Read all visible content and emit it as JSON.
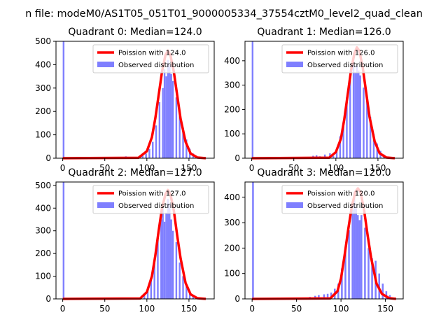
{
  "figure": {
    "suptitle": "n file: modeM0/AS1T05_051T01_9000005334_37554cztM0_level2_quad_clean",
    "colors": {
      "hist": "#7f7fff",
      "fit": "#ff0000",
      "axes": "#000000"
    }
  },
  "chart_data": [
    {
      "type": "bar",
      "title": "Quadrant 0: Median=124.0",
      "xlim": [
        -8,
        180
      ],
      "ylim": [
        0,
        500
      ],
      "xticks": [
        0,
        50,
        100,
        150
      ],
      "yticks": [
        0,
        100,
        200,
        300,
        400,
        500
      ],
      "legend_position": "top-right",
      "legend": [
        "Poission with 124.0",
        "Observed distribution"
      ],
      "fit_mean": 124.0,
      "hist_bins": [
        {
          "x": 0,
          "y": 500
        },
        {
          "x": 72,
          "y": 5
        },
        {
          "x": 74,
          "y": 8
        },
        {
          "x": 82,
          "y": 3
        },
        {
          "x": 90,
          "y": 8
        },
        {
          "x": 94,
          "y": 12
        },
        {
          "x": 98,
          "y": 20
        },
        {
          "x": 102,
          "y": 40
        },
        {
          "x": 106,
          "y": 70
        },
        {
          "x": 110,
          "y": 140
        },
        {
          "x": 114,
          "y": 240
        },
        {
          "x": 118,
          "y": 300
        },
        {
          "x": 120,
          "y": 380
        },
        {
          "x": 122,
          "y": 350
        },
        {
          "x": 124,
          "y": 420
        },
        {
          "x": 126,
          "y": 400
        },
        {
          "x": 128,
          "y": 360
        },
        {
          "x": 130,
          "y": 330
        },
        {
          "x": 134,
          "y": 260
        },
        {
          "x": 138,
          "y": 180
        },
        {
          "x": 142,
          "y": 130
        },
        {
          "x": 146,
          "y": 80
        },
        {
          "x": 150,
          "y": 40
        },
        {
          "x": 154,
          "y": 20
        },
        {
          "x": 158,
          "y": 10
        },
        {
          "x": 162,
          "y": 4
        }
      ],
      "fit_curve": [
        {
          "x": 0,
          "y": 0
        },
        {
          "x": 90,
          "y": 2
        },
        {
          "x": 100,
          "y": 30
        },
        {
          "x": 106,
          "y": 90
        },
        {
          "x": 110,
          "y": 170
        },
        {
          "x": 114,
          "y": 270
        },
        {
          "x": 118,
          "y": 370
        },
        {
          "x": 122,
          "y": 440
        },
        {
          "x": 125,
          "y": 460
        },
        {
          "x": 128,
          "y": 440
        },
        {
          "x": 132,
          "y": 370
        },
        {
          "x": 136,
          "y": 270
        },
        {
          "x": 140,
          "y": 170
        },
        {
          "x": 146,
          "y": 70
        },
        {
          "x": 152,
          "y": 20
        },
        {
          "x": 160,
          "y": 3
        },
        {
          "x": 170,
          "y": 0
        }
      ]
    },
    {
      "type": "bar",
      "title": "Quadrant 1: Median=126.0",
      "xlim": [
        -8,
        180
      ],
      "ylim": [
        0,
        480
      ],
      "xticks": [
        0,
        50,
        100,
        150
      ],
      "yticks": [
        0,
        100,
        200,
        300,
        400
      ],
      "legend_position": "top-right",
      "legend": [
        "Poission with 126.0",
        "Observed distribution"
      ],
      "fit_mean": 126.0,
      "hist_bins": [
        {
          "x": 0,
          "y": 480
        },
        {
          "x": 72,
          "y": 10
        },
        {
          "x": 76,
          "y": 12
        },
        {
          "x": 80,
          "y": 8
        },
        {
          "x": 86,
          "y": 15
        },
        {
          "x": 92,
          "y": 20
        },
        {
          "x": 96,
          "y": 10
        },
        {
          "x": 100,
          "y": 30
        },
        {
          "x": 104,
          "y": 90
        },
        {
          "x": 108,
          "y": 150
        },
        {
          "x": 112,
          "y": 250
        },
        {
          "x": 116,
          "y": 350
        },
        {
          "x": 120,
          "y": 400
        },
        {
          "x": 122,
          "y": 350
        },
        {
          "x": 124,
          "y": 380
        },
        {
          "x": 126,
          "y": 360
        },
        {
          "x": 128,
          "y": 340
        },
        {
          "x": 132,
          "y": 290
        },
        {
          "x": 136,
          "y": 240
        },
        {
          "x": 140,
          "y": 170
        },
        {
          "x": 144,
          "y": 100
        },
        {
          "x": 148,
          "y": 60
        },
        {
          "x": 152,
          "y": 30
        },
        {
          "x": 156,
          "y": 15
        },
        {
          "x": 160,
          "y": 5
        }
      ],
      "fit_curve": [
        {
          "x": 0,
          "y": 0
        },
        {
          "x": 92,
          "y": 2
        },
        {
          "x": 100,
          "y": 25
        },
        {
          "x": 106,
          "y": 80
        },
        {
          "x": 110,
          "y": 160
        },
        {
          "x": 114,
          "y": 260
        },
        {
          "x": 118,
          "y": 360
        },
        {
          "x": 122,
          "y": 430
        },
        {
          "x": 125,
          "y": 455
        },
        {
          "x": 128,
          "y": 440
        },
        {
          "x": 132,
          "y": 370
        },
        {
          "x": 136,
          "y": 270
        },
        {
          "x": 140,
          "y": 170
        },
        {
          "x": 146,
          "y": 70
        },
        {
          "x": 152,
          "y": 20
        },
        {
          "x": 160,
          "y": 3
        },
        {
          "x": 170,
          "y": 0
        }
      ]
    },
    {
      "type": "bar",
      "title": "Quadrant 2: Median=127.0",
      "xlim": [
        -8,
        180
      ],
      "ylim": [
        0,
        515
      ],
      "xticks": [
        0,
        50,
        100,
        150
      ],
      "yticks": [
        0,
        100,
        200,
        300,
        400,
        500
      ],
      "legend_position": "top-right",
      "legend": [
        "Poission with 127.0",
        "Observed distribution"
      ],
      "fit_mean": 127.0,
      "hist_bins": [
        {
          "x": 0,
          "y": 515
        },
        {
          "x": 80,
          "y": 3
        },
        {
          "x": 86,
          "y": 5
        },
        {
          "x": 92,
          "y": 8
        },
        {
          "x": 96,
          "y": 15
        },
        {
          "x": 100,
          "y": 40
        },
        {
          "x": 104,
          "y": 90
        },
        {
          "x": 108,
          "y": 160
        },
        {
          "x": 112,
          "y": 260
        },
        {
          "x": 116,
          "y": 350
        },
        {
          "x": 118,
          "y": 400
        },
        {
          "x": 120,
          "y": 340
        },
        {
          "x": 122,
          "y": 380
        },
        {
          "x": 124,
          "y": 440
        },
        {
          "x": 126,
          "y": 420
        },
        {
          "x": 128,
          "y": 350
        },
        {
          "x": 130,
          "y": 300
        },
        {
          "x": 134,
          "y": 250
        },
        {
          "x": 138,
          "y": 160
        },
        {
          "x": 142,
          "y": 100
        },
        {
          "x": 146,
          "y": 60
        },
        {
          "x": 150,
          "y": 30
        },
        {
          "x": 154,
          "y": 15
        },
        {
          "x": 158,
          "y": 8
        },
        {
          "x": 162,
          "y": 3
        }
      ],
      "fit_curve": [
        {
          "x": 0,
          "y": 0
        },
        {
          "x": 92,
          "y": 2
        },
        {
          "x": 100,
          "y": 30
        },
        {
          "x": 106,
          "y": 100
        },
        {
          "x": 110,
          "y": 190
        },
        {
          "x": 114,
          "y": 300
        },
        {
          "x": 118,
          "y": 400
        },
        {
          "x": 122,
          "y": 460
        },
        {
          "x": 125,
          "y": 480
        },
        {
          "x": 128,
          "y": 460
        },
        {
          "x": 132,
          "y": 390
        },
        {
          "x": 136,
          "y": 280
        },
        {
          "x": 140,
          "y": 180
        },
        {
          "x": 146,
          "y": 70
        },
        {
          "x": 152,
          "y": 20
        },
        {
          "x": 160,
          "y": 3
        },
        {
          "x": 170,
          "y": 0
        }
      ]
    },
    {
      "type": "bar",
      "title": "Quadrant 3: Median=120.0",
      "xlim": [
        -8,
        170
      ],
      "ylim": [
        0,
        460
      ],
      "xticks": [
        0,
        50,
        100,
        150
      ],
      "yticks": [
        0,
        100,
        200,
        300,
        400
      ],
      "legend_position": "top-right",
      "legend": [
        "Poission with 120.0",
        "Observed distribution"
      ],
      "fit_mean": 120.0,
      "hist_bins": [
        {
          "x": 0,
          "y": 460
        },
        {
          "x": 60,
          "y": 3
        },
        {
          "x": 64,
          "y": 8
        },
        {
          "x": 70,
          "y": 12
        },
        {
          "x": 74,
          "y": 15
        },
        {
          "x": 80,
          "y": 18
        },
        {
          "x": 84,
          "y": 20
        },
        {
          "x": 88,
          "y": 25
        },
        {
          "x": 92,
          "y": 40
        },
        {
          "x": 96,
          "y": 60
        },
        {
          "x": 100,
          "y": 120
        },
        {
          "x": 104,
          "y": 200
        },
        {
          "x": 108,
          "y": 270
        },
        {
          "x": 112,
          "y": 350
        },
        {
          "x": 114,
          "y": 420
        },
        {
          "x": 116,
          "y": 360
        },
        {
          "x": 118,
          "y": 330
        },
        {
          "x": 120,
          "y": 310
        },
        {
          "x": 122,
          "y": 330
        },
        {
          "x": 126,
          "y": 280
        },
        {
          "x": 130,
          "y": 200
        },
        {
          "x": 134,
          "y": 160
        },
        {
          "x": 138,
          "y": 150
        },
        {
          "x": 142,
          "y": 100
        },
        {
          "x": 146,
          "y": 60
        },
        {
          "x": 150,
          "y": 30
        },
        {
          "x": 154,
          "y": 15
        },
        {
          "x": 158,
          "y": 5
        }
      ],
      "fit_curve": [
        {
          "x": 0,
          "y": 0
        },
        {
          "x": 88,
          "y": 2
        },
        {
          "x": 96,
          "y": 30
        },
        {
          "x": 100,
          "y": 80
        },
        {
          "x": 104,
          "y": 170
        },
        {
          "x": 108,
          "y": 270
        },
        {
          "x": 112,
          "y": 360
        },
        {
          "x": 116,
          "y": 420
        },
        {
          "x": 119,
          "y": 435
        },
        {
          "x": 122,
          "y": 420
        },
        {
          "x": 126,
          "y": 350
        },
        {
          "x": 130,
          "y": 250
        },
        {
          "x": 134,
          "y": 160
        },
        {
          "x": 140,
          "y": 60
        },
        {
          "x": 146,
          "y": 20
        },
        {
          "x": 154,
          "y": 3
        },
        {
          "x": 162,
          "y": 0
        }
      ]
    }
  ]
}
